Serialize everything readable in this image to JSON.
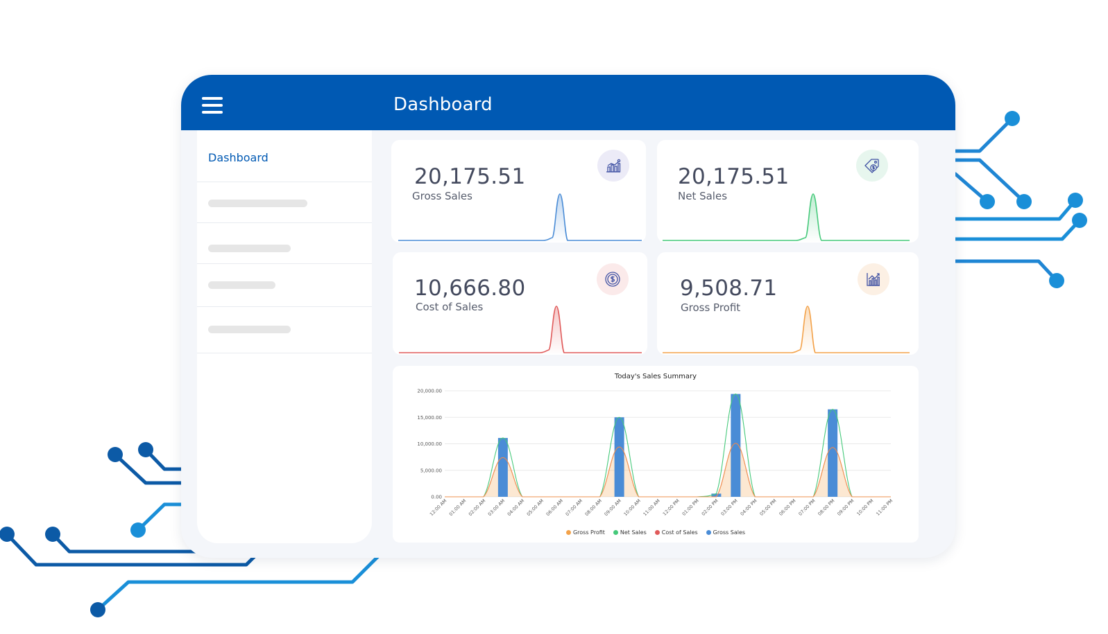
{
  "header": {
    "title": "Dashboard"
  },
  "sidebar": {
    "items": [
      {
        "label": "Dashboard",
        "active": true
      }
    ]
  },
  "cards": [
    {
      "value": "20,175.51",
      "label": "Gross Sales",
      "color": "#4a8cd6",
      "icon": "bar-chart-up-icon",
      "badge_bg": "#ecebf7"
    },
    {
      "value": "20,175.51",
      "label": "Net Sales",
      "color": "#45c97a",
      "icon": "price-tag-dollar-icon",
      "badge_bg": "#e7f6ee"
    },
    {
      "value": "10,666.80",
      "label": "Cost of Sales",
      "color": "#e05a5a",
      "icon": "dollar-coin-icon",
      "badge_bg": "#fbeaea"
    },
    {
      "value": "9,508.71",
      "label": "Gross Profit",
      "color": "#f3a24a",
      "icon": "line-chart-up-icon",
      "badge_bg": "#fcf0e4"
    }
  ],
  "chart_data": {
    "type": "bar",
    "title": "Today's Sales Summary",
    "categories": [
      "12:00 AM",
      "01:00 AM",
      "02:00 AM",
      "03:00 AM",
      "04:00 AM",
      "05:00 AM",
      "06:00 AM",
      "07:00 AM",
      "08:00 AM",
      "09:00 AM",
      "10:00 AM",
      "11:00 AM",
      "12:00 PM",
      "01:00 PM",
      "02:00 PM",
      "03:00 PM",
      "04:00 PM",
      "05:00 PM",
      "06:00 PM",
      "07:00 PM",
      "08:00 PM",
      "09:00 PM",
      "10:00 PM",
      "11:00 PM"
    ],
    "ylim": [
      0,
      20000
    ],
    "yticks": [
      "0.00",
      "5,000.00",
      "10,000.00",
      "15,000.00",
      "20,000.00"
    ],
    "series": [
      {
        "name": "Gross Profit",
        "kind": "area",
        "color": "#f3a24a",
        "values": [
          0,
          0,
          0,
          7400,
          0,
          0,
          0,
          0,
          0,
          9400,
          0,
          0,
          0,
          0,
          0,
          10100,
          0,
          0,
          0,
          0,
          9300,
          0,
          0,
          0
        ]
      },
      {
        "name": "Net Sales",
        "kind": "line",
        "color": "#45c97a",
        "values": [
          0,
          0,
          0,
          11100,
          0,
          0,
          0,
          0,
          0,
          15000,
          0,
          0,
          0,
          0,
          600,
          19400,
          0,
          0,
          0,
          0,
          16500,
          0,
          0,
          0
        ]
      },
      {
        "name": "Cost of Sales",
        "kind": "line",
        "color": "#e05a5a",
        "values": [
          0,
          0,
          0,
          7400,
          0,
          0,
          0,
          0,
          0,
          9400,
          0,
          0,
          0,
          0,
          0,
          10100,
          0,
          0,
          0,
          0,
          9300,
          0,
          0,
          0
        ]
      },
      {
        "name": "Gross Sales",
        "kind": "bar",
        "color": "#4a8cd6",
        "values": [
          0,
          0,
          0,
          11100,
          0,
          0,
          0,
          0,
          0,
          15000,
          0,
          0,
          0,
          0,
          600,
          19400,
          0,
          0,
          0,
          0,
          16500,
          0,
          0,
          0
        ]
      }
    ],
    "legend": "bottom",
    "grid": true
  }
}
